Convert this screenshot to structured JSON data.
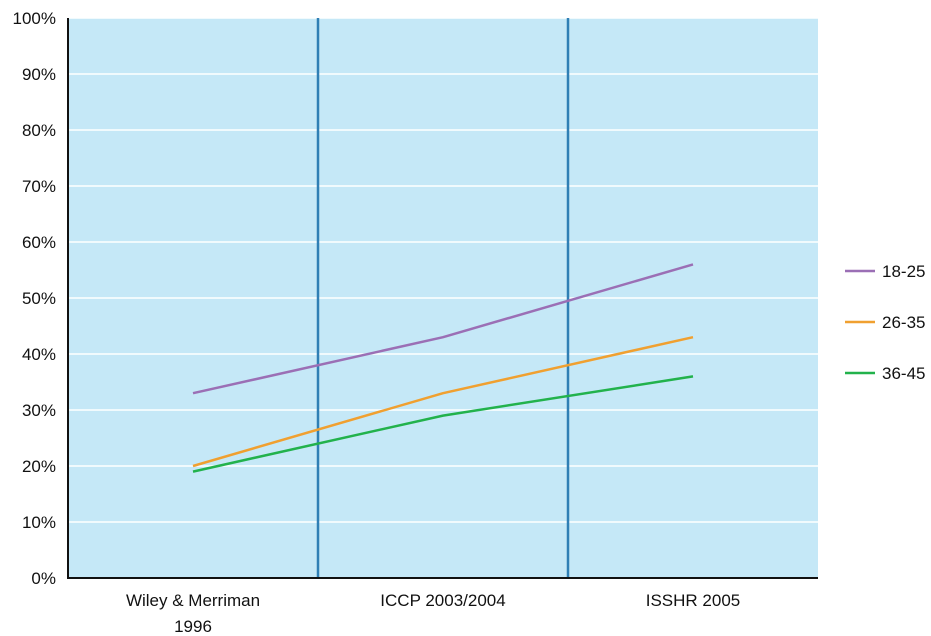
{
  "chart_data": {
    "type": "line",
    "categories": [
      "Wiley & Merriman 1996",
      "ICCP 2003/2004",
      "ISSHR 2005"
    ],
    "category_label_lines": [
      [
        "Wiley & Merriman",
        "1996"
      ],
      [
        "ICCP 2003/2004"
      ],
      [
        "ISSHR 2005"
      ]
    ],
    "series": [
      {
        "name": "18-25",
        "values": [
          33,
          43,
          56
        ],
        "color": "#9b6fb5"
      },
      {
        "name": "26-35",
        "values": [
          20,
          33,
          43
        ],
        "color": "#f0a030"
      },
      {
        "name": "36-45",
        "values": [
          19,
          29,
          36
        ],
        "color": "#22b24c"
      }
    ],
    "ylim": [
      0,
      100
    ],
    "yticks": [
      "0%",
      "10%",
      "20%",
      "30%",
      "40%",
      "50%",
      "60%",
      "70%",
      "80%",
      "90%",
      "100%"
    ],
    "grid": true,
    "legend_position": "right",
    "colors": {
      "plot_background": "#c5e8f7",
      "gridline": "#ffffff",
      "separator": "#2f7fb5",
      "axis": "#111111"
    }
  }
}
